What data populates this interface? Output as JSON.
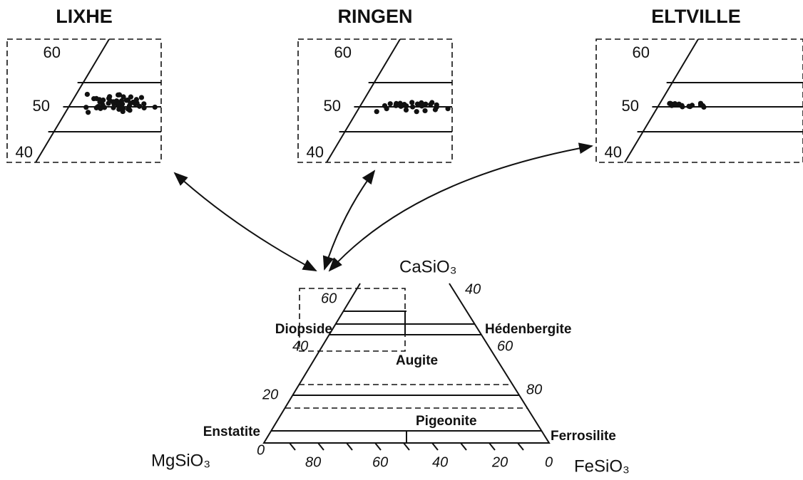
{
  "insets": [
    {
      "title": "LIXHE",
      "ticks": [
        "60",
        "50",
        "40"
      ]
    },
    {
      "title": "RINGEN",
      "ticks": [
        "60",
        "50",
        "40"
      ]
    },
    {
      "title": "ELTVILLE",
      "ticks": [
        "60",
        "50",
        "40"
      ]
    }
  ],
  "diagram": {
    "apex": "CaSiO₃",
    "left_corner": "MgSiO₃",
    "right_corner": "FeSiO₃",
    "fields": {
      "diopside": "Diopside",
      "hedenbergite": "Hédenbergite",
      "augite": "Augite",
      "pigeonite": "Pigeonite",
      "enstatite": "Enstatite",
      "ferrosilite": "Ferrosilite"
    },
    "left_ticks": [
      "60",
      "40",
      "20",
      "0"
    ],
    "right_ticks": [
      "40",
      "60",
      "80"
    ],
    "bottom_ticks": [
      "80",
      "60",
      "40",
      "20",
      "0"
    ]
  }
}
